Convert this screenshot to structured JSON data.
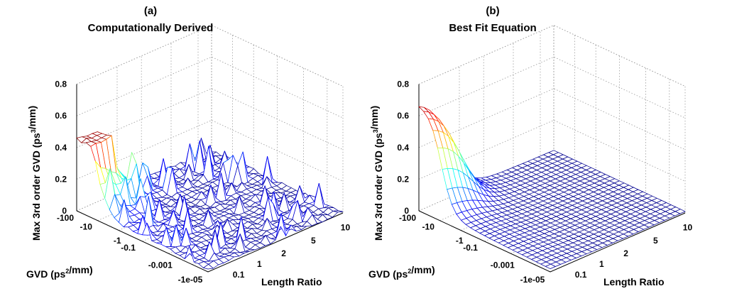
{
  "chart_data": [
    {
      "type": "surface",
      "panel_label": "(a)",
      "title": "Computationally Derived",
      "xlabel": "GVD (ps²/mm)",
      "ylabel": "Length Ratio",
      "zlabel": "Max 3rd order GVD (ps³/mm)",
      "x_ticks": [
        "-100",
        "-10",
        "-1",
        "-0.1",
        "-0.001",
        "-1e-05"
      ],
      "y_ticks": [
        "0.1",
        "1",
        "2",
        "5",
        "10"
      ],
      "z_ticks": [
        "0",
        "0.2",
        "0.4",
        "0.6",
        "0.8"
      ],
      "zlim": [
        0,
        0.8
      ],
      "peak_value": 0.46,
      "grid": true,
      "colormap": "jet"
    },
    {
      "type": "surface",
      "panel_label": "(b)",
      "title": "Best Fit Equation",
      "xlabel": "GVD (ps²/mm)",
      "ylabel": "Length Ratio",
      "zlabel": "Max 3rd order GVD (ps³/mm)",
      "x_ticks": [
        "-100",
        "-10",
        "-1",
        "-0.1",
        "-0.001",
        "-1e-05"
      ],
      "y_ticks": [
        "0.1",
        "1",
        "2",
        "5",
        "10"
      ],
      "z_ticks": [
        "0",
        "0.2",
        "0.4",
        "0.6",
        "0.8"
      ],
      "zlim": [
        0,
        0.8
      ],
      "peak_value": 0.68,
      "grid": true,
      "colormap": "jet"
    }
  ]
}
